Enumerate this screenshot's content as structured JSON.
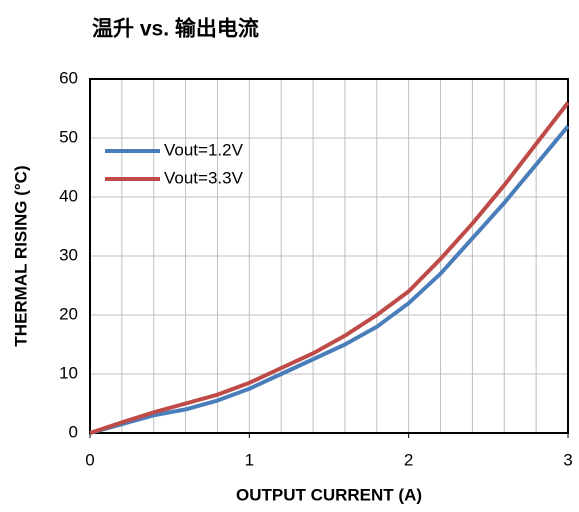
{
  "chart_data": {
    "type": "line",
    "title": "温升 vs. 输出电流",
    "x_label": "OUTPUT  CURRENT  (A)",
    "y_label": "THERMAL  RISING (°C)",
    "x": [
      0,
      0.2,
      0.4,
      0.6,
      0.8,
      1,
      1.2,
      1.4,
      1.6,
      1.8,
      2,
      2.2,
      2.4,
      2.6,
      2.8,
      3
    ],
    "series": [
      {
        "name": "Vout=1.2V",
        "color": "#4a7ebb",
        "values": [
          0,
          1.5,
          3,
          4,
          5.5,
          7.5,
          10,
          12.5,
          15,
          18,
          22,
          27,
          33,
          39,
          45.5,
          52
        ]
      },
      {
        "name": "Vout=3.3V",
        "color": "#be4b48",
        "values": [
          0,
          1.8,
          3.5,
          5,
          6.5,
          8.5,
          11,
          13.5,
          16.5,
          20,
          24,
          29.5,
          35.5,
          42,
          49,
          56
        ]
      }
    ],
    "xlim": [
      0,
      3
    ],
    "xticks": [
      0,
      1,
      2,
      3
    ],
    "x_grid": [
      0.2,
      0.4,
      0.6,
      0.8,
      1,
      1.2,
      1.4,
      1.6,
      1.8,
      2,
      2.2,
      2.4,
      2.6,
      2.8
    ],
    "ylim": [
      0,
      60
    ],
    "yticks": [
      0,
      10,
      20,
      30,
      40,
      50,
      60
    ],
    "grid": true,
    "legend": "upper left"
  }
}
